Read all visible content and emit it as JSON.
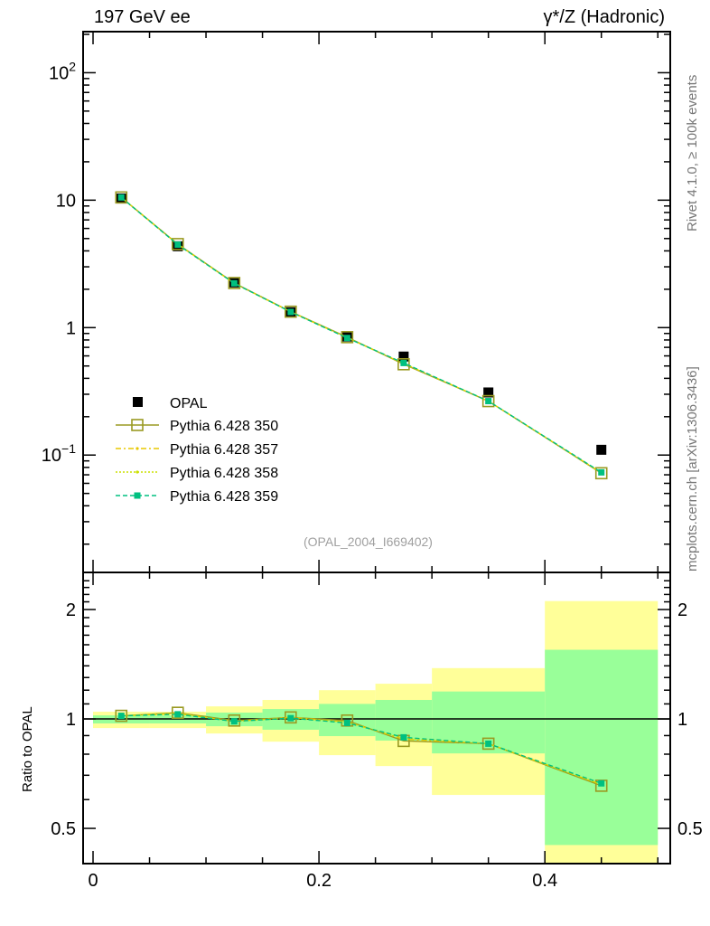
{
  "chart_data": [
    {
      "type": "scatter",
      "title_left": "197 GeV ee",
      "title_right": "γ*/Z (Hadronic)",
      "yscale": "log",
      "xlim": [
        -0.0088,
        0.511
      ],
      "ylim": [
        0.012,
        210
      ],
      "yticks": [
        {
          "v": 100,
          "base": "10",
          "exp": "2"
        },
        {
          "v": 10,
          "base": "10",
          "exp": ""
        },
        {
          "v": 1,
          "base": "1",
          "exp": ""
        },
        {
          "v": 0.1,
          "base": "10",
          "exp": "−1"
        }
      ],
      "watermark": "(OPAL_2004_I669402)",
      "side_label_top": "Rivet 4.1.0, ≥ 100k events",
      "side_label_bottom": "mcplots.cern.ch [arXiv:1306.3436]",
      "legend_position": "bottom-left",
      "bins": [
        [
          0,
          0.05
        ],
        [
          0.05,
          0.1
        ],
        [
          0.1,
          0.15
        ],
        [
          0.15,
          0.2
        ],
        [
          0.2,
          0.25
        ],
        [
          0.25,
          0.3
        ],
        [
          0.3,
          0.4
        ],
        [
          0.4,
          0.5
        ]
      ],
      "x": [
        0.025,
        0.075,
        0.125,
        0.175,
        0.225,
        0.275,
        0.35,
        0.45
      ],
      "data": {
        "name": "OPAL",
        "color": "#000000",
        "values": [
          10.3,
          4.35,
          2.26,
          1.32,
          0.85,
          0.593,
          0.31,
          0.11
        ]
      },
      "series": [
        {
          "name": "Pythia 6.428 350",
          "color": "#9a9a22",
          "style": "solid",
          "marker": "open-square",
          "ratio": [
            1.02,
            1.04,
            0.99,
            1.01,
            0.99,
            0.87,
            0.855,
            0.655
          ]
        },
        {
          "name": "Pythia 6.428 357",
          "color": "#e8c800",
          "style": "dashdot",
          "marker": "dot",
          "ratio": [
            1.02,
            1.035,
            0.985,
            1.01,
            0.98,
            0.88,
            0.855,
            0.66
          ]
        },
        {
          "name": "Pythia 6.428 358",
          "color": "#cce000",
          "style": "dotted",
          "marker": "dot",
          "ratio": [
            1.02,
            1.035,
            0.985,
            1.005,
            0.98,
            0.885,
            0.855,
            0.66
          ]
        },
        {
          "name": "Pythia 6.428 359",
          "color": "#00c080",
          "style": "dashed",
          "marker": "filled-square",
          "ratio": [
            1.02,
            1.03,
            0.985,
            1.005,
            0.975,
            0.89,
            0.855,
            0.665
          ]
        }
      ]
    },
    {
      "type": "area",
      "ylabel": "Ratio to OPAL",
      "yscale": "log",
      "ylim": [
        0.4,
        2.53
      ],
      "yticks": [
        {
          "v": 2,
          "label": "2"
        },
        {
          "v": 1,
          "label": "1"
        },
        {
          "v": 0.5,
          "label": "0.5"
        }
      ],
      "xticks": [
        {
          "v": 0,
          "label": "0"
        },
        {
          "v": 0.2,
          "label": "0.2"
        },
        {
          "v": 0.4,
          "label": "0.4"
        }
      ],
      "band_colors": {
        "stat": "#99ff99",
        "total": "#ffff99"
      },
      "band_stat": [
        [
          0.972,
          1.023
        ],
        [
          0.972,
          1.023
        ],
        [
          0.955,
          1.041
        ],
        [
          0.934,
          1.065
        ],
        [
          0.897,
          1.1
        ],
        [
          0.872,
          1.128
        ],
        [
          0.804,
          1.19
        ],
        [
          0.45,
          1.55
        ]
      ],
      "band_total": [
        [
          0.944,
          1.047
        ],
        [
          0.944,
          1.047
        ],
        [
          0.912,
          1.083
        ],
        [
          0.866,
          1.128
        ],
        [
          0.795,
          1.2
        ],
        [
          0.742,
          1.25
        ],
        [
          0.618,
          1.38
        ],
        [
          0.3,
          2.11
        ]
      ]
    }
  ]
}
